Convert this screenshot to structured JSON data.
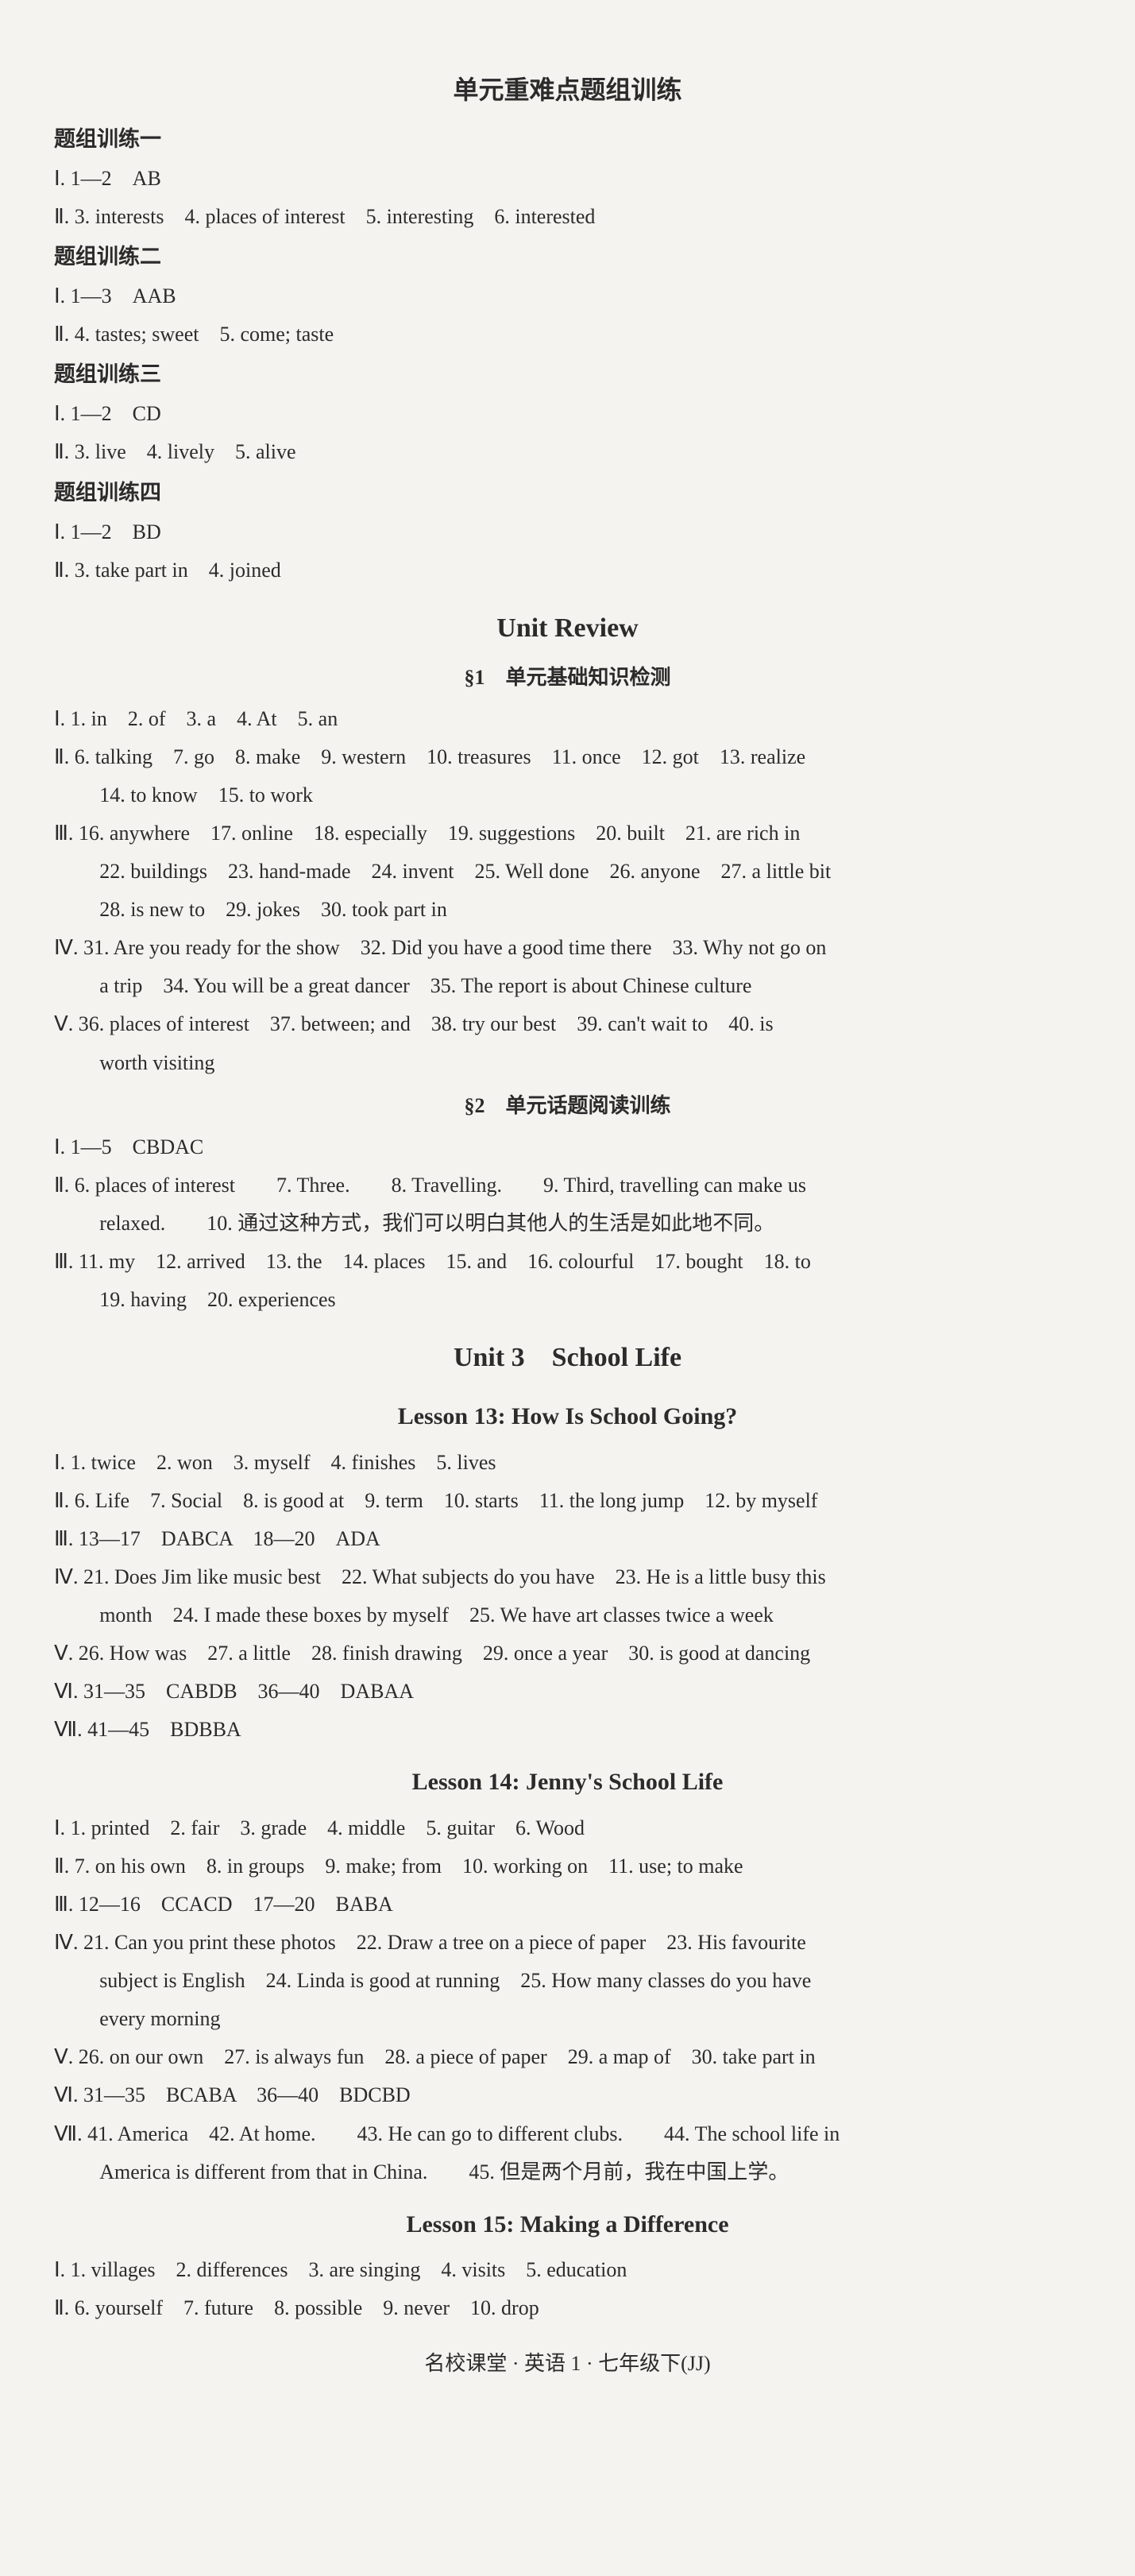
{
  "sec1": {
    "title": "单元重难点题组训练",
    "g1": {
      "label": "题组训练一",
      "l1": "Ⅰ. 1—2　AB",
      "l2": "Ⅱ. 3. interests　4. places of interest　5. interesting　6. interested"
    },
    "g2": {
      "label": "题组训练二",
      "l1": "Ⅰ. 1—3　AAB",
      "l2": "Ⅱ. 4. tastes; sweet　5. come; taste"
    },
    "g3": {
      "label": "题组训练三",
      "l1": "Ⅰ. 1—2　CD",
      "l2": "Ⅱ. 3. live　4. lively　5. alive"
    },
    "g4": {
      "label": "题组训练四",
      "l1": "Ⅰ. 1—2　BD",
      "l2": "Ⅱ. 3. take part in　4. joined"
    }
  },
  "review": {
    "title": "Unit Review",
    "sub1": "§1　单元基础知识检测",
    "l1": "Ⅰ. 1. in　2. of　3. a　4. At　5. an",
    "l2": "Ⅱ. 6. talking　7. go　8. make　9. western　10. treasures　11. once　12. got　13. realize",
    "l2b": "14. to know　15. to work",
    "l3": "Ⅲ. 16. anywhere　17. online　18. especially　19. suggestions　20. built　21. are rich in",
    "l3b": "22. buildings　23. hand-made　24. invent　25. Well done　26. anyone　27. a little bit",
    "l3c": "28. is new to　29. jokes　30. took part in",
    "l4": "Ⅳ. 31. Are you ready for the show　32. Did you have a good time there　33. Why not go on",
    "l4b": "a trip　34. You will be a great dancer　35. The report is about Chinese culture",
    "l5": "Ⅴ. 36. places of interest　37. between; and　38. try our best　39. can't wait to　40. is",
    "l5b": "worth visiting",
    "sub2": "§2　单元话题阅读训练",
    "r1": "Ⅰ. 1—5　CBDAC",
    "r2": "Ⅱ. 6. places of interest　　7. Three.　　8. Travelling.　　9. Third, travelling can make us",
    "r2b": "relaxed.　　10. 通过这种方式，我们可以明白其他人的生活是如此地不同。",
    "r3": "Ⅲ. 11. my　12. arrived　13. the　14. places　15. and　16. colourful　17. bought　18. to",
    "r3b": "19. having　20. experiences"
  },
  "unit3": {
    "title": "Unit 3　School Life",
    "l13": {
      "title": "Lesson 13: How Is School Going?",
      "l1": "Ⅰ. 1. twice　2. won　3. myself　4. finishes　5. lives",
      "l2": "Ⅱ. 6. Life　7. Social　8. is good at　9. term　10. starts　11. the long jump　12. by myself",
      "l3": "Ⅲ. 13—17　DABCA　18—20　ADA",
      "l4": "Ⅳ. 21. Does Jim like music best　22. What subjects do you have　23. He is a little busy this",
      "l4b": "month　24. I made these boxes by myself　25. We have art classes twice a week",
      "l5": "Ⅴ. 26. How was　27. a little　28. finish drawing　29. once a year　30. is good at dancing",
      "l6": "Ⅵ. 31—35　CABDB　36—40　DABAA",
      "l7": "Ⅶ. 41—45　BDBBA"
    },
    "l14": {
      "title": "Lesson 14: Jenny's School Life",
      "l1": "Ⅰ. 1. printed　2. fair　3. grade　4. middle　5. guitar　6. Wood",
      "l2": "Ⅱ. 7. on his own　8. in groups　9. make; from　10. working on　11. use; to make",
      "l3": "Ⅲ. 12—16　CCACD　17—20　BABA",
      "l4": "Ⅳ. 21. Can you print these photos　22. Draw a tree on a piece of paper　23. His favourite",
      "l4b": "subject is English　24. Linda is good at running　25. How many classes do you have",
      "l4c": "every morning",
      "l5": "Ⅴ. 26. on our own　27. is always fun　28. a piece of paper　29. a map of　30. take part in",
      "l6": "Ⅵ. 31—35　BCABA　36—40　BDCBD",
      "l7": "Ⅶ. 41. America　42. At home.　　43. He can go to different clubs.　　44. The school life in",
      "l7b": "America is different from that in China.　　45. 但是两个月前，我在中国上学。"
    },
    "l15": {
      "title": "Lesson 15: Making a Difference",
      "l1": "Ⅰ. 1. villages　2. differences　3. are singing　4. visits　5. education",
      "l2": "Ⅱ. 6. yourself　7. future　8. possible　9. never　10. drop"
    }
  },
  "footer": "名校课堂 · 英语 1 · 七年级下(JJ)"
}
